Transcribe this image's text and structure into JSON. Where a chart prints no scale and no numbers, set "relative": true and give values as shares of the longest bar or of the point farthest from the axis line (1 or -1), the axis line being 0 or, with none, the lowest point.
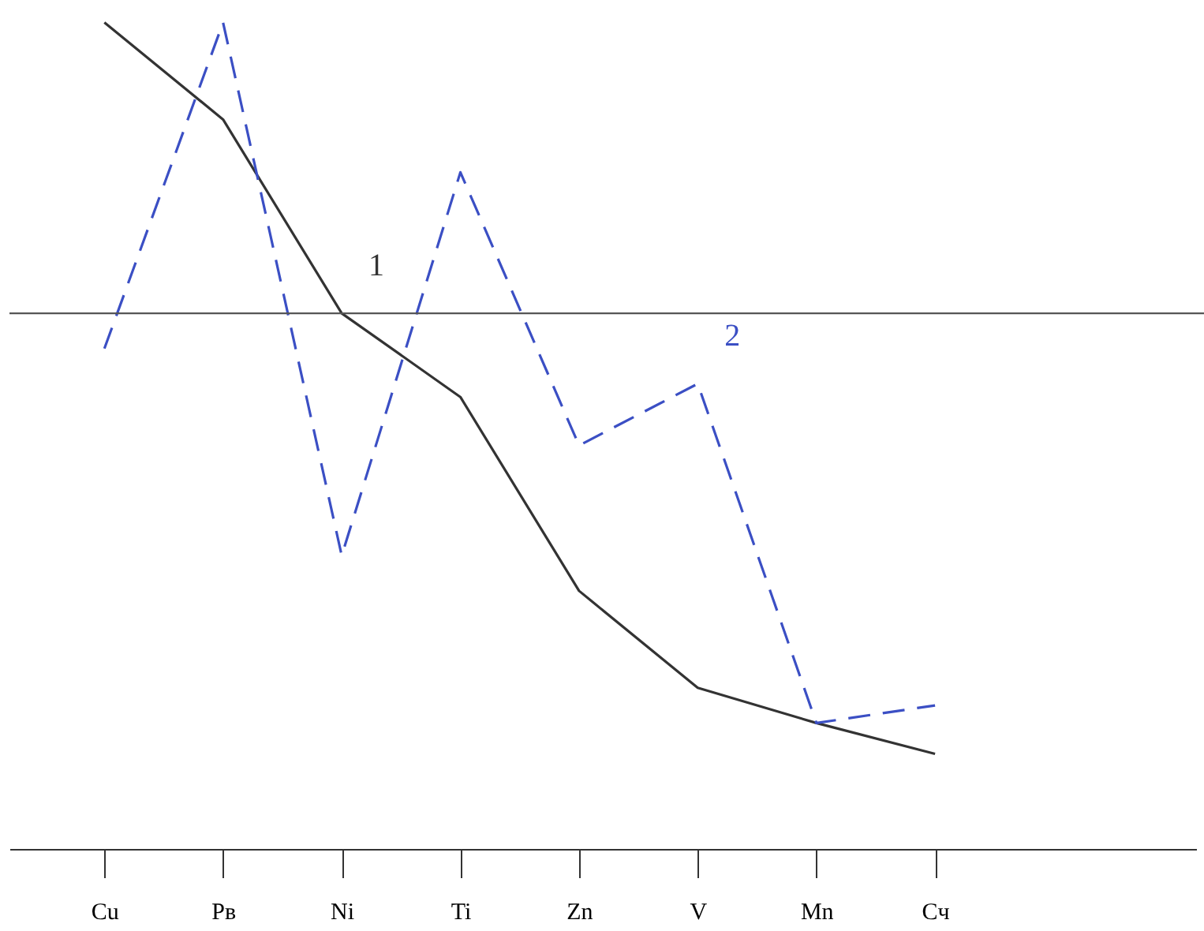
{
  "chart_data": {
    "type": "line",
    "relative": true,
    "categories": [
      "Cu",
      "Pв",
      "Ni",
      "Ti",
      "Zn",
      "V",
      "Mn",
      "Cч"
    ],
    "series": [
      {
        "name": "1",
        "color": "#333333",
        "line_style": "solid",
        "values": [
          0.66,
          0.44,
          0,
          -0.19,
          -0.63,
          -0.85,
          -0.93,
          -1
        ]
      },
      {
        "name": "2",
        "color": "#3b4fc4",
        "line_style": "dashed",
        "values": [
          -0.08,
          0.66,
          -0.55,
          0.32,
          -0.3,
          -0.16,
          -0.93,
          -0.89
        ]
      }
    ],
    "marker": "none",
    "grid": false,
    "legend": false
  }
}
